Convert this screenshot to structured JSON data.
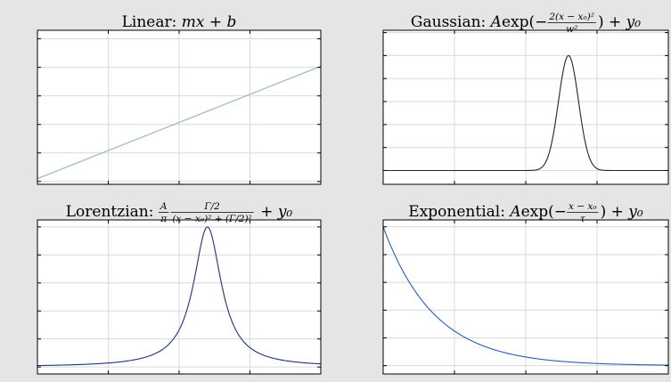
{
  "figure": {
    "background": "#e5e5e5",
    "panel_background": "#ffffff",
    "grid_color": "#d9d9d9"
  },
  "chart_data": [
    {
      "type": "line",
      "title": "Linear: mx + b",
      "title_parts": [
        {
          "text": "Linear: ",
          "style": "normal"
        },
        {
          "text": "mx",
          "style": "italic"
        },
        {
          "text": " + ",
          "style": "normal"
        },
        {
          "text": "b",
          "style": "italic"
        }
      ],
      "function": "linear",
      "x": [
        0,
        1,
        2,
        3,
        4,
        5,
        6,
        7,
        8,
        9,
        10
      ],
      "series": [
        {
          "values": [
            0.1,
            0.494,
            0.888,
            1.282,
            1.676,
            2.07,
            2.464,
            2.858,
            3.252,
            3.646,
            4.04
          ],
          "color": "#8fbc8f"
        }
      ],
      "xlim": [
        0,
        10
      ],
      "ylim": [
        -0.1,
        5.3
      ],
      "xticks": [
        0,
        2.5,
        5,
        7.5,
        10
      ],
      "yticks": [
        0,
        1,
        2,
        3,
        4,
        5
      ],
      "grid": true,
      "show_tick_labels": false
    },
    {
      "type": "line",
      "title": "Gaussian: Aexp(-2(x-x0)^2/w^2) + y0",
      "title_parts": [
        {
          "text": "Gaussian: ",
          "style": "normal"
        },
        {
          "text": "A",
          "style": "italic"
        },
        {
          "text": "exp",
          "style": "normal"
        },
        {
          "text": "(−",
          "style": "normal"
        },
        {
          "frac_num": "2(x − x₀)²",
          "frac_den": "w²"
        },
        {
          "text": ") + ",
          "style": "normal"
        },
        {
          "text": "y₀",
          "style": "italic"
        }
      ],
      "function": "gaussian",
      "params": {
        "A": 1.0,
        "x0": 6.5,
        "w": 0.7,
        "y0": 0.0
      },
      "x_range": [
        0,
        10
      ],
      "series": [
        {
          "color": "#2f1f24"
        }
      ],
      "xlim": [
        0,
        10
      ],
      "ylim": [
        -0.12,
        1.22
      ],
      "xticks": [
        0,
        2.5,
        5,
        7.5,
        10
      ],
      "yticks": [
        0,
        0.2,
        0.4,
        0.6,
        0.8,
        1.0,
        1.2
      ],
      "grid": true,
      "show_tick_labels": false
    },
    {
      "type": "line",
      "title": "Lorentzian: (A/π)(Γ/2)/((x-x0)^2+(Γ/2)^2) + y0",
      "title_parts": [
        {
          "text": "Lorentzian: ",
          "style": "normal"
        },
        {
          "frac_num": "A",
          "frac_den": "π"
        },
        {
          "frac_num": "Γ/2",
          "frac_den": "(x − x₀)² + (Γ/2)²"
        },
        {
          "text": " + ",
          "style": "normal"
        },
        {
          "text": "y₀",
          "style": "italic"
        }
      ],
      "function": "lorentzian",
      "params": {
        "peak": 1.0,
        "x0": 6.0,
        "gamma": 1.2,
        "y0": 0.0
      },
      "x_range": [
        0,
        10
      ],
      "series": [
        {
          "color": "#1a3570"
        }
      ],
      "xlim": [
        0,
        10
      ],
      "ylim": [
        -0.05,
        1.05
      ],
      "xticks": [
        0,
        2.5,
        5,
        7.5,
        10
      ],
      "yticks": [
        0,
        0.2,
        0.4,
        0.6,
        0.8,
        1.0
      ],
      "grid": true,
      "show_tick_labels": false
    },
    {
      "type": "line",
      "title": "Exponential: Aexp(-(x-x0)/τ) + y0",
      "title_parts": [
        {
          "text": "Exponential: ",
          "style": "normal"
        },
        {
          "text": "A",
          "style": "italic"
        },
        {
          "text": "exp",
          "style": "normal"
        },
        {
          "text": "(−",
          "style": "normal"
        },
        {
          "frac_num": "x − x₀",
          "frac_den": "τ"
        },
        {
          "text": ") + ",
          "style": "normal"
        },
        {
          "text": "y₀",
          "style": "italic"
        }
      ],
      "function": "exponential",
      "params": {
        "A": 1.0,
        "x0": 0.0,
        "tau": 1.8,
        "y0": 0.0
      },
      "x_range": [
        0,
        10
      ],
      "series": [
        {
          "color": "#2a5db0"
        }
      ],
      "xlim": [
        0,
        10
      ],
      "ylim": [
        -0.06,
        1.05
      ],
      "xticks": [
        0,
        2.5,
        5,
        7.5,
        10
      ],
      "yticks": [
        0,
        0.2,
        0.4,
        0.6,
        0.8,
        1.0
      ],
      "grid": true,
      "show_tick_labels": false
    }
  ]
}
